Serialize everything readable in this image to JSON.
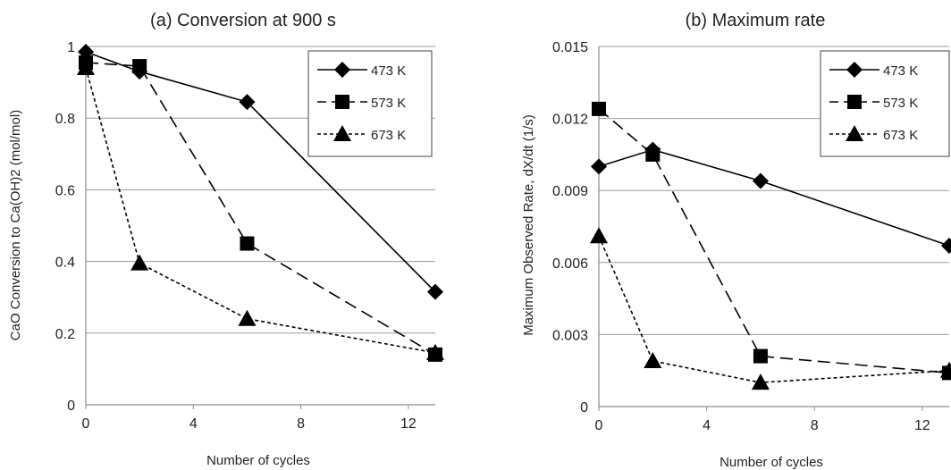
{
  "chart_data": [
    {
      "type": "line",
      "title": "(a) Conversion at 900 s",
      "xlabel": "Number of cycles",
      "ylabel": "CaO Conversion to Ca(OH)2 (mol/mol)",
      "xlim": [
        0,
        13
      ],
      "ylim": [
        0,
        1
      ],
      "xticks": [
        0,
        4,
        8,
        12
      ],
      "xtick_labels": [
        "0",
        "4",
        "8",
        "12"
      ],
      "yticks": [
        0,
        0.2,
        0.4,
        0.6,
        0.8,
        1
      ],
      "ytick_labels": [
        "0",
        "0.2",
        "0.4",
        "0.6",
        "0.8",
        "1"
      ],
      "grid": "horizontal",
      "legend_position": "top-right",
      "series": [
        {
          "name": "473 K",
          "marker": "diamond",
          "line": "solid",
          "x": [
            0,
            2,
            6,
            13
          ],
          "y": [
            0.985,
            0.93,
            0.845,
            0.315
          ]
        },
        {
          "name": "573 K",
          "marker": "square",
          "line": "dashed",
          "x": [
            0,
            2,
            6,
            13
          ],
          "y": [
            0.955,
            0.945,
            0.45,
            0.14
          ]
        },
        {
          "name": "673 K",
          "marker": "triangle",
          "line": "dotted",
          "x": [
            0,
            2,
            6,
            13
          ],
          "y": [
            0.94,
            0.395,
            0.24,
            0.145
          ]
        }
      ]
    },
    {
      "type": "line",
      "title": "(b) Maximum rate",
      "xlabel": "Number of cycles",
      "ylabel": "Maximum Observed Rate, dX/dt (1/s)",
      "xlim": [
        0,
        13
      ],
      "ylim": [
        0,
        0.015
      ],
      "xticks": [
        0,
        4,
        8,
        12
      ],
      "xtick_labels": [
        "0",
        "4",
        "8",
        "12"
      ],
      "yticks": [
        0,
        0.003,
        0.006,
        0.009,
        0.012,
        0.015
      ],
      "ytick_labels": [
        "0",
        "0.003",
        "0.006",
        "0.009",
        "0.012",
        "0.015"
      ],
      "grid": "horizontal",
      "legend_position": "top-right",
      "series": [
        {
          "name": "473 K",
          "marker": "diamond",
          "line": "solid",
          "x": [
            0,
            2,
            6,
            13
          ],
          "y": [
            0.01,
            0.0107,
            0.0094,
            0.0067
          ]
        },
        {
          "name": "573 K",
          "marker": "square",
          "line": "dashed",
          "x": [
            0,
            2,
            6,
            13
          ],
          "y": [
            0.0124,
            0.0105,
            0.0021,
            0.0014
          ]
        },
        {
          "name": "673 K",
          "marker": "triangle",
          "line": "dotted",
          "x": [
            0,
            2,
            6,
            13
          ],
          "y": [
            0.0071,
            0.0019,
            0.001,
            0.0015
          ]
        }
      ]
    }
  ]
}
